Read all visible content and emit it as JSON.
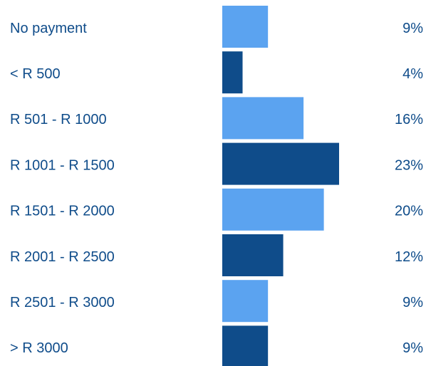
{
  "chart_data": {
    "type": "hbar",
    "categories": [
      "No payment",
      "< R 500",
      "R 501 - R 1000",
      "R 1001 - R 1500",
      "R 1501 - R 2000",
      "R 2001 - R 2500",
      "R 2501 - R 3000",
      "> R 3000"
    ],
    "values": [
      9,
      4,
      16,
      23,
      20,
      12,
      9,
      9
    ],
    "value_labels": [
      "9%",
      "4%",
      "16%",
      "23%",
      "20%",
      "12%",
      "9%",
      "9%"
    ],
    "colors": [
      "#5ba3f0",
      "#0f4c8a",
      "#5ba3f0",
      "#0f4c8a",
      "#5ba3f0",
      "#0f4c8a",
      "#5ba3f0",
      "#0f4c8a"
    ]
  }
}
